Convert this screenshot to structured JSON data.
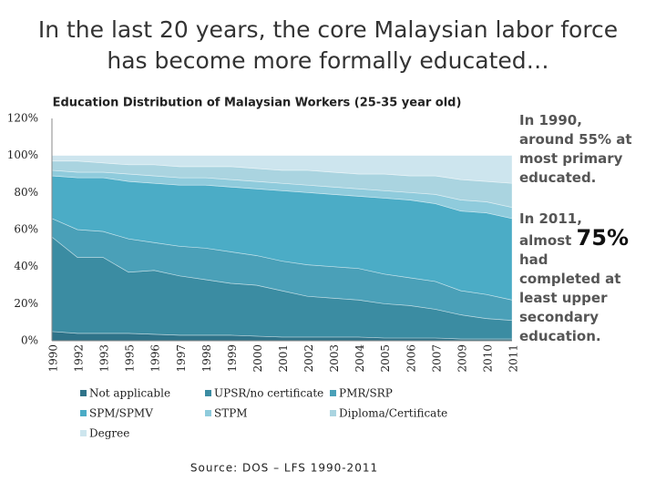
{
  "title": "In the last 20 years, the core Malaysian labor force has become more formally educated…",
  "notes": [
    "In 1990, around 55% at most primary educated.",
    "In 2011, almost",
    "75%",
    "had",
    "completed at least upper secondary education."
  ],
  "source": "Source: DOS – LFS 1990-2011",
  "chart_data": {
    "type": "stacked-area",
    "title": "Education Distribution of Malaysian Workers (25-35 year old)",
    "categories": [
      "1990",
      "1992",
      "1993",
      "1995",
      "1996",
      "1997",
      "1998",
      "1999",
      "2000",
      "2001",
      "2002",
      "2003",
      "2004",
      "2005",
      "2006",
      "2007",
      "2009",
      "2010",
      "2011"
    ],
    "series": [
      {
        "name": "Not applicable",
        "color": "#2f7389",
        "values": [
          5,
          4,
          4,
          4,
          3.5,
          3,
          3,
          3,
          2.5,
          2,
          2,
          2,
          2,
          1.5,
          1.5,
          1.5,
          1,
          1,
          1
        ]
      },
      {
        "name": "UPSR/no certificate",
        "color": "#3b8ca2",
        "values": [
          51,
          41,
          41,
          33,
          34.5,
          32,
          30,
          28,
          27.5,
          25,
          22,
          21,
          20,
          18.5,
          17.5,
          15.5,
          13,
          11,
          10
        ]
      },
      {
        "name": "PMR/SRP",
        "color": "#4aa0b8",
        "values": [
          10,
          15,
          14,
          18,
          15,
          16,
          17,
          17,
          16,
          16,
          17,
          17,
          17,
          16,
          15,
          15,
          13,
          13,
          11
        ]
      },
      {
        "name": "SPM/SPMV",
        "color": "#4bacc6",
        "values": [
          23,
          28,
          29,
          31,
          32,
          33,
          34,
          35,
          36,
          38,
          39,
          39,
          39,
          41,
          42,
          42,
          43,
          44,
          44
        ]
      },
      {
        "name": "STPM",
        "color": "#8fcbdc",
        "values": [
          3,
          3,
          3,
          4,
          4,
          4,
          4,
          4,
          4,
          4,
          4,
          4,
          4,
          4,
          4,
          5,
          6,
          6,
          6
        ]
      },
      {
        "name": "Diploma/Certificate",
        "color": "#aad4e0",
        "values": [
          5,
          6,
          5,
          5,
          6,
          6,
          6,
          7,
          7,
          7,
          8,
          8,
          8,
          9,
          9,
          10,
          11,
          11,
          13
        ]
      },
      {
        "name": "Degree",
        "color": "#cde5ee",
        "values": [
          3,
          3,
          4,
          5,
          5,
          6,
          6,
          6,
          7,
          8,
          8,
          9,
          10,
          10,
          11,
          11,
          13,
          14,
          15
        ]
      }
    ],
    "ylim": [
      0,
      120
    ],
    "yticks": [
      {
        "value": 0,
        "label": "0%"
      },
      {
        "value": 20,
        "label": "20%"
      },
      {
        "value": 40,
        "label": "40%"
      },
      {
        "value": 60,
        "label": "60%"
      },
      {
        "value": 80,
        "label": "80%"
      },
      {
        "value": 100,
        "label": "100%"
      },
      {
        "value": 120,
        "label": "120%"
      }
    ],
    "grid": false
  }
}
